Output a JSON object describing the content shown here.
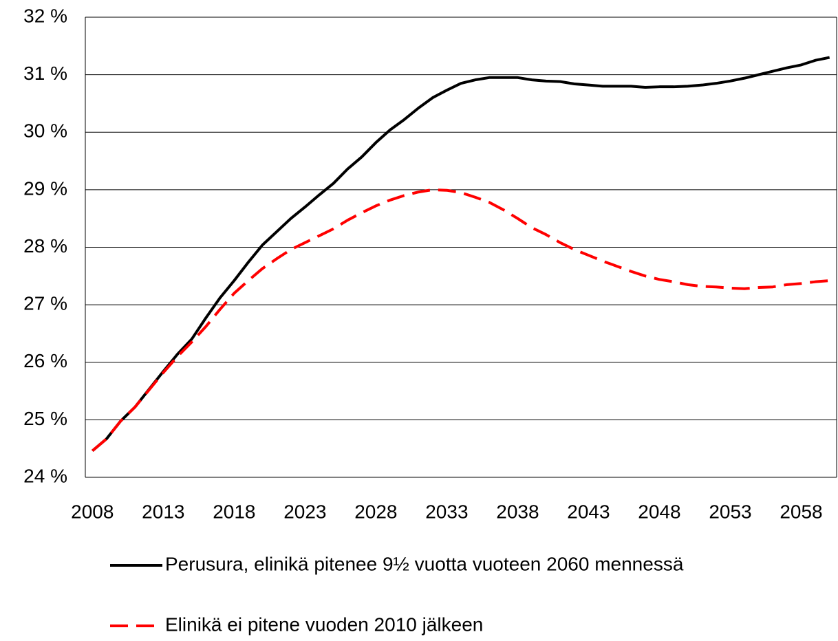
{
  "chart_data": {
    "type": "line",
    "x": [
      2008,
      2009,
      2010,
      2011,
      2012,
      2013,
      2014,
      2015,
      2016,
      2017,
      2018,
      2019,
      2020,
      2021,
      2022,
      2023,
      2024,
      2025,
      2026,
      2027,
      2028,
      2029,
      2030,
      2031,
      2032,
      2033,
      2034,
      2035,
      2036,
      2037,
      2038,
      2039,
      2040,
      2041,
      2042,
      2043,
      2044,
      2045,
      2046,
      2047,
      2048,
      2049,
      2050,
      2051,
      2052,
      2053,
      2054,
      2055,
      2056,
      2057,
      2058,
      2059,
      2060
    ],
    "xlim": [
      2007.5,
      2060.5
    ],
    "xticks": [
      2008,
      2013,
      2018,
      2023,
      2028,
      2033,
      2038,
      2043,
      2048,
      2053,
      2058
    ],
    "ylim": [
      24,
      32
    ],
    "yticks": [
      {
        "value": 24,
        "label": "24 %"
      },
      {
        "value": 25,
        "label": "25 %"
      },
      {
        "value": 26,
        "label": "26 %"
      },
      {
        "value": 27,
        "label": "27 %"
      },
      {
        "value": 28,
        "label": "28 %"
      },
      {
        "value": 29,
        "label": "29 %"
      },
      {
        "value": 30,
        "label": "30 %"
      },
      {
        "value": 31,
        "label": "31 %"
      },
      {
        "value": 32,
        "label": "32 %"
      }
    ],
    "grid": true,
    "series": [
      {
        "name": "Perusura, elinikä pitenee 9½ vuotta vuoteen 2060 mennessä",
        "color": "#000000",
        "dash": false,
        "values": [
          24.46,
          24.67,
          24.98,
          25.22,
          25.53,
          25.84,
          26.14,
          26.4,
          26.77,
          27.12,
          27.42,
          27.74,
          28.04,
          28.27,
          28.5,
          28.7,
          28.91,
          29.11,
          29.36,
          29.57,
          29.82,
          30.04,
          30.22,
          30.42,
          30.6,
          30.73,
          30.85,
          30.91,
          30.95,
          30.95,
          30.95,
          30.91,
          30.89,
          30.88,
          30.84,
          30.82,
          30.8,
          30.8,
          30.8,
          30.78,
          30.79,
          30.79,
          30.8,
          30.82,
          30.85,
          30.89,
          30.94,
          31.0,
          31.06,
          31.12,
          31.17,
          31.25,
          31.3
        ]
      },
      {
        "name": "Elinikä ei pitene vuoden 2010 jälkeen",
        "color": "#ff0000",
        "dash": true,
        "values": [
          24.46,
          24.67,
          24.98,
          25.22,
          25.52,
          25.82,
          26.1,
          26.35,
          26.62,
          26.92,
          27.2,
          27.42,
          27.63,
          27.8,
          27.96,
          28.08,
          28.2,
          28.32,
          28.47,
          28.6,
          28.72,
          28.82,
          28.9,
          28.96,
          29.0,
          28.99,
          28.95,
          28.87,
          28.78,
          28.65,
          28.5,
          28.34,
          28.22,
          28.08,
          27.96,
          27.86,
          27.76,
          27.67,
          27.58,
          27.5,
          27.44,
          27.4,
          27.35,
          27.32,
          27.31,
          27.29,
          27.28,
          27.3,
          27.31,
          27.35,
          27.37,
          27.4,
          27.42
        ]
      }
    ]
  }
}
